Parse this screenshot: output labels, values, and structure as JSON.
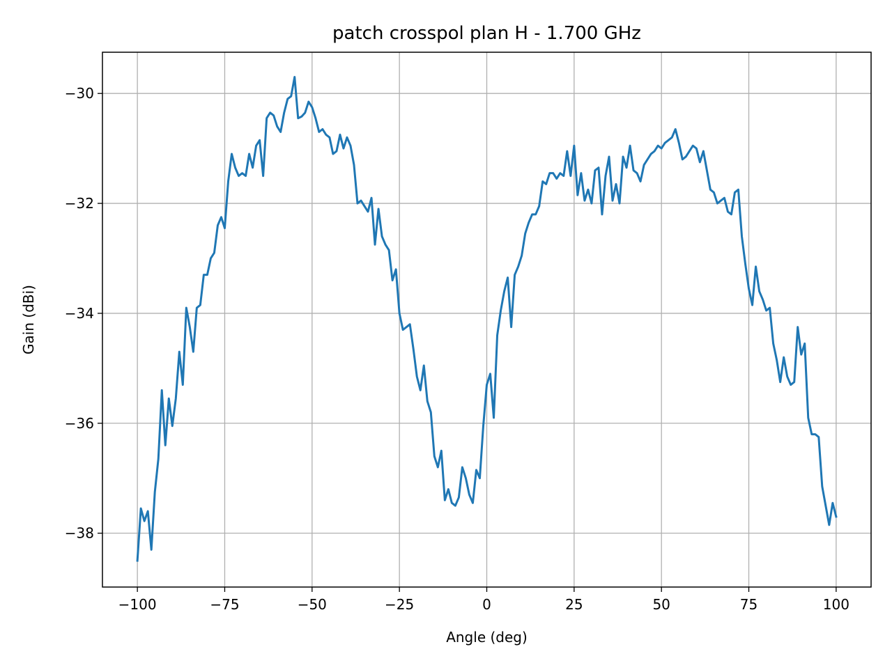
{
  "chart_data": {
    "type": "line",
    "title": "patch crosspol plan H - 1.700 GHz",
    "xlabel": "Angle (deg)",
    "ylabel": "Gain (dBi)",
    "xlim": [
      -110,
      110
    ],
    "ylim": [
      -38.98,
      -29.25
    ],
    "xticks": [
      -100,
      -75,
      -50,
      -25,
      0,
      25,
      50,
      75,
      100
    ],
    "xtick_labels": [
      "−100",
      "−75",
      "−50",
      "−25",
      "0",
      "25",
      "50",
      "75",
      "100"
    ],
    "yticks": [
      -38,
      -36,
      -34,
      -32,
      -30
    ],
    "ytick_labels": [
      "−38",
      "−36",
      "−34",
      "−32",
      "−30"
    ],
    "grid": true,
    "line_color": "#1f77b4",
    "series": [
      {
        "x": [
          -100,
          -99,
          -98,
          -97,
          -96,
          -95,
          -94,
          -93,
          -92,
          -91,
          -90,
          -89,
          -88,
          -87,
          -86,
          -85,
          -84,
          -83,
          -82,
          -81,
          -80,
          -79,
          -78,
          -77,
          -76,
          -75,
          -74,
          -73,
          -72,
          -71,
          -70,
          -69,
          -68,
          -67,
          -66,
          -65,
          -64,
          -63,
          -62,
          -61,
          -60,
          -59,
          -58,
          -57,
          -56,
          -55,
          -54,
          -53,
          -52,
          -51,
          -50,
          -49,
          -48,
          -47,
          -46,
          -45,
          -44,
          -43,
          -42,
          -41,
          -40,
          -39,
          -38,
          -37,
          -36,
          -35,
          -34,
          -33,
          -32,
          -31,
          -30,
          -29,
          -28,
          -27,
          -26,
          -25,
          -24,
          -23,
          -22,
          -21,
          -20,
          -19,
          -18,
          -17,
          -16,
          -15,
          -14,
          -13,
          -12,
          -11,
          -10,
          -9,
          -8,
          -7,
          -6,
          -5,
          -4,
          -3,
          -2,
          -1,
          0,
          1,
          2,
          3,
          4,
          5,
          6,
          7,
          8,
          9,
          10,
          11,
          12,
          13,
          14,
          15,
          16,
          17,
          18,
          19,
          20,
          21,
          22,
          23,
          24,
          25,
          26,
          27,
          28,
          29,
          30,
          31,
          32,
          33,
          34,
          35,
          36,
          37,
          38,
          39,
          40,
          41,
          42,
          43,
          44,
          45,
          46,
          47,
          48,
          49,
          50,
          51,
          52,
          53,
          54,
          55,
          56,
          57,
          58,
          59,
          60,
          61,
          62,
          63,
          64,
          65,
          66,
          67,
          68,
          69,
          70,
          71,
          72,
          73,
          74,
          75,
          76,
          77,
          78,
          79,
          80,
          81,
          82,
          83,
          84,
          85,
          86,
          87,
          88,
          89,
          90,
          91,
          92,
          93,
          94,
          95,
          96,
          97,
          98,
          99,
          100
        ],
        "y": [
          -38.5,
          -37.55,
          -37.78,
          -37.6,
          -38.3,
          -37.25,
          -36.65,
          -35.4,
          -36.4,
          -35.55,
          -36.05,
          -35.55,
          -34.7,
          -35.3,
          -33.9,
          -34.25,
          -34.7,
          -33.9,
          -33.85,
          -33.3,
          -33.3,
          -33.0,
          -32.9,
          -32.4,
          -32.25,
          -32.45,
          -31.6,
          -31.1,
          -31.35,
          -31.5,
          -31.45,
          -31.5,
          -31.1,
          -31.35,
          -30.95,
          -30.85,
          -31.5,
          -30.45,
          -30.35,
          -30.4,
          -30.6,
          -30.7,
          -30.35,
          -30.1,
          -30.05,
          -29.7,
          -30.45,
          -30.42,
          -30.35,
          -30.15,
          -30.25,
          -30.45,
          -30.7,
          -30.65,
          -30.75,
          -30.8,
          -31.1,
          -31.05,
          -30.75,
          -31.0,
          -30.8,
          -30.95,
          -31.3,
          -32.0,
          -31.95,
          -32.05,
          -32.15,
          -31.9,
          -32.75,
          -32.1,
          -32.6,
          -32.75,
          -32.85,
          -33.4,
          -33.2,
          -34.0,
          -34.3,
          -34.25,
          -34.2,
          -34.65,
          -35.15,
          -35.4,
          -34.95,
          -35.6,
          -35.8,
          -36.6,
          -36.8,
          -36.5,
          -37.4,
          -37.2,
          -37.45,
          -37.5,
          -37.35,
          -36.8,
          -37.0,
          -37.3,
          -37.45,
          -36.85,
          -37.0,
          -36.05,
          -35.3,
          -35.1,
          -35.9,
          -34.4,
          -33.95,
          -33.6,
          -33.35,
          -34.25,
          -33.3,
          -33.15,
          -32.95,
          -32.55,
          -32.35,
          -32.2,
          -32.2,
          -32.05,
          -31.6,
          -31.65,
          -31.45,
          -31.45,
          -31.55,
          -31.45,
          -31.5,
          -31.05,
          -31.5,
          -30.95,
          -31.85,
          -31.45,
          -31.95,
          -31.75,
          -32.0,
          -31.4,
          -31.35,
          -32.2,
          -31.5,
          -31.15,
          -31.95,
          -31.65,
          -32.0,
          -31.15,
          -31.35,
          -30.95,
          -31.4,
          -31.45,
          -31.6,
          -31.3,
          -31.2,
          -31.1,
          -31.05,
          -30.95,
          -31.0,
          -30.9,
          -30.85,
          -30.8,
          -30.65,
          -30.9,
          -31.2,
          -31.15,
          -31.05,
          -30.95,
          -31.0,
          -31.25,
          -31.05,
          -31.4,
          -31.75,
          -31.8,
          -32.0,
          -31.95,
          -31.9,
          -32.15,
          -32.2,
          -31.8,
          -31.75,
          -32.6,
          -33.1,
          -33.55,
          -33.85,
          -33.15,
          -33.6,
          -33.75,
          -33.95,
          -33.9,
          -34.55,
          -34.85,
          -35.25,
          -34.8,
          -35.15,
          -35.3,
          -35.25,
          -34.25,
          -34.75,
          -34.55,
          -35.9,
          -36.2,
          -36.2,
          -36.25,
          -37.15,
          -37.5,
          -37.85,
          -37.45,
          -37.7
        ]
      }
    ]
  }
}
